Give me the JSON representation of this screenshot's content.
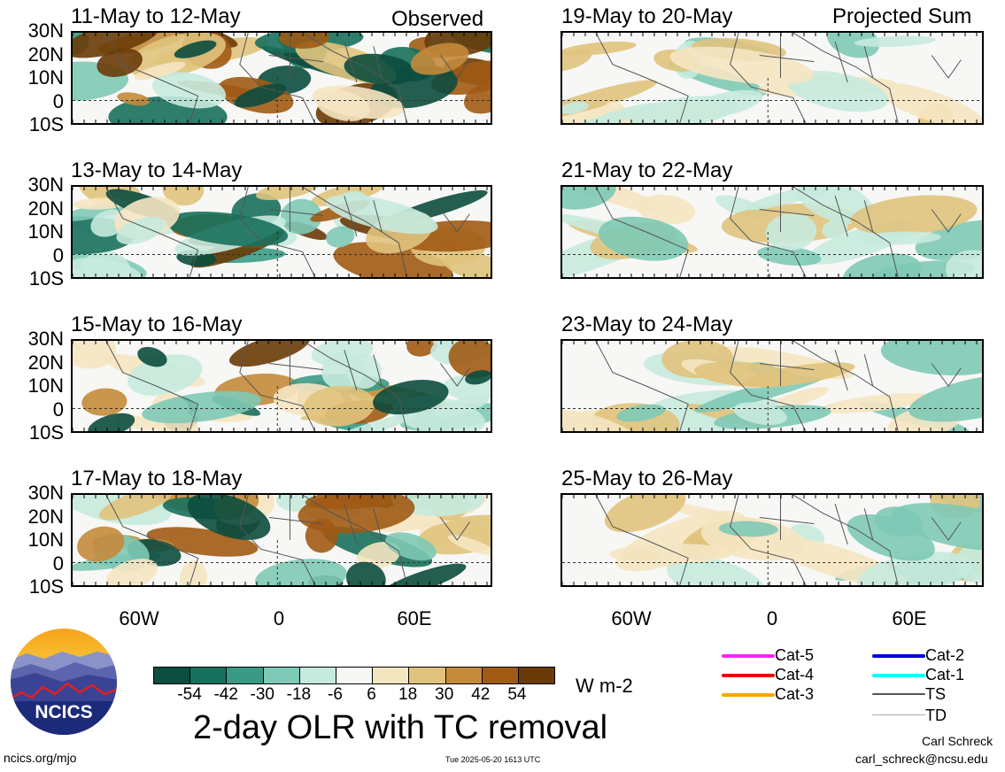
{
  "panels_left": [
    {
      "title": "11-May to 12-May",
      "corner": "Observed"
    },
    {
      "title": "13-May to 14-May",
      "corner": ""
    },
    {
      "title": "15-May to 16-May",
      "corner": ""
    },
    {
      "title": "17-May to 18-May",
      "corner": ""
    }
  ],
  "panels_right": [
    {
      "title": "19-May to 20-May",
      "corner": "Projected Sum"
    },
    {
      "title": "21-May to 22-May",
      "corner": ""
    },
    {
      "title": "23-May to 24-May",
      "corner": ""
    },
    {
      "title": "25-May to 26-May",
      "corner": ""
    }
  ],
  "lat_labels": [
    "30N",
    "20N",
    "10N",
    "0",
    "10S"
  ],
  "lon_labels": [
    "60W",
    "0",
    "60E"
  ],
  "colorbar": {
    "colors": [
      "#0b4d3e",
      "#17705c",
      "#3a9a86",
      "#7ec9b6",
      "#c7eade",
      "#f7f7f5",
      "#f5e6c2",
      "#e0c37d",
      "#c48a3b",
      "#a05a14",
      "#6a3b08"
    ],
    "ticks": [
      "-54",
      "-42",
      "-30",
      "-18",
      "-6",
      "6",
      "18",
      "30",
      "42",
      "54"
    ],
    "units": "W m-2"
  },
  "legend": [
    {
      "label": "Cat-5",
      "color": "#ff22ff"
    },
    {
      "label": "Cat-4",
      "color": "#ee0000"
    },
    {
      "label": "Cat-3",
      "color": "#ffa500"
    },
    {
      "label": "Cat-2",
      "color": "#0000dd"
    },
    {
      "label": "Cat-1",
      "color": "#00ffff"
    },
    {
      "label": "TS",
      "color": "#555555"
    },
    {
      "label": "TD",
      "color": "#aaaaaa"
    }
  ],
  "main_title": "2-day OLR with TC removal",
  "logo_text": "NCICS",
  "footer": {
    "left": "ncics.org/mjo",
    "center": "Tue 2025-05-20 1613 UTC",
    "author": "Carl Schreck",
    "email": "carl_schreck@ncsu.edu"
  }
}
